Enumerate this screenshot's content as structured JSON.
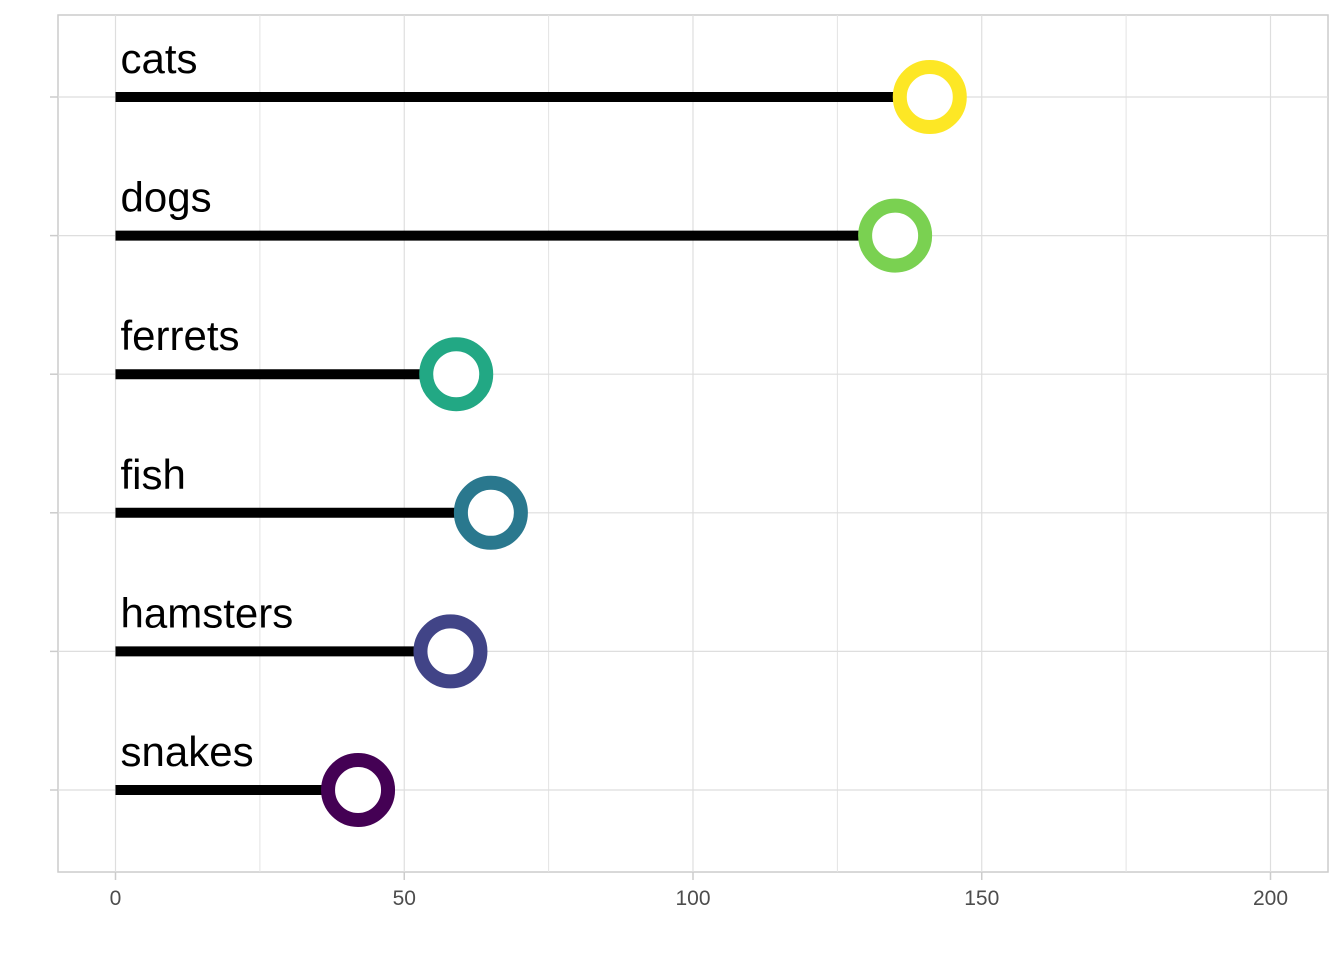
{
  "chart_data": {
    "type": "lollipop",
    "categories": [
      "cats",
      "dogs",
      "ferrets",
      "fish",
      "hamsters",
      "snakes"
    ],
    "values": [
      141,
      135,
      59,
      65,
      58,
      42
    ],
    "colors": [
      "#FDE725",
      "#7AD151",
      "#22A884",
      "#2A788E",
      "#414487",
      "#440154"
    ],
    "xlim": [
      0,
      200
    ],
    "x_ticks": [
      0,
      50,
      100,
      150,
      200
    ],
    "x_tick_labels": [
      "0",
      "50",
      "100",
      "150",
      "200"
    ],
    "title": "",
    "xlabel": "",
    "ylabel": "",
    "grid": true,
    "legend": "none"
  }
}
